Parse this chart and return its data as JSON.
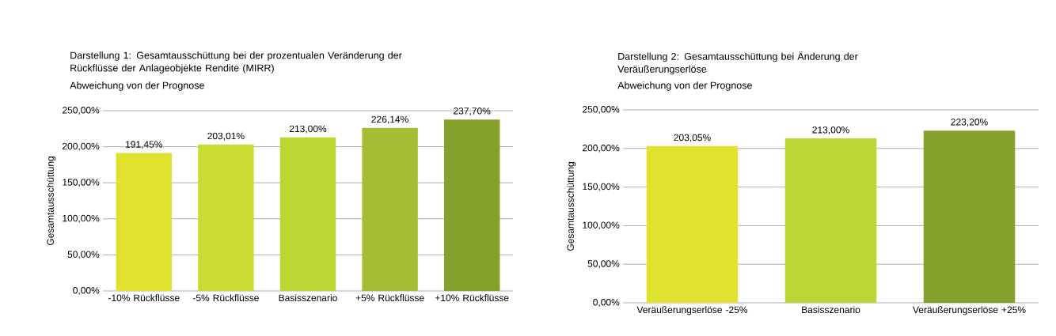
{
  "chart_data": [
    {
      "type": "bar",
      "title": "Darstellung 1: Gesamtausschüttung bei der prozentualen Veränderung der Rückflüsse der Anlageobjekte Rendite (MIRR)",
      "subtitle": "Abweichung von der Prognose",
      "ylabel": "Gesamtausschüttung",
      "categories": [
        "-10% Rückflüsse",
        "-5% Rückflüsse",
        "Basisszenario",
        "+5% Rückflüsse",
        "+10% Rückflüsse"
      ],
      "values": [
        191.45,
        203.01,
        213.0,
        226.14,
        237.7
      ],
      "value_labels": [
        "191,45%",
        "203,01%",
        "213,00%",
        "226,14%",
        "237,70%"
      ],
      "colors": [
        "#e1e22f",
        "#c9dc36",
        "#bcd636",
        "#a3be33",
        "#86a02c"
      ],
      "ylim": [
        0,
        250
      ],
      "yticks": [
        {
          "value": 0,
          "label": "0,00%"
        },
        {
          "value": 50,
          "label": "50,00%"
        },
        {
          "value": 100,
          "label": "100,00%"
        },
        {
          "value": 150,
          "label": "150,00%"
        },
        {
          "value": 200,
          "label": "200,00%"
        },
        {
          "value": 250,
          "label": "250,00%"
        }
      ],
      "grid": "y"
    },
    {
      "type": "bar",
      "title": "Darstellung 2: Gesamtausschüttung bei Änderung der Veräußerungserlöse",
      "subtitle": "Abweichung von der Prognose",
      "ylabel": "Gesamtausschüttung",
      "categories": [
        "Veräußerungserlöse -25%",
        "Basisszenario",
        "Veräußerungserlöse +25%"
      ],
      "values": [
        203.05,
        213.0,
        223.2
      ],
      "value_labels": [
        "203,05%",
        "213,00%",
        "223,20%"
      ],
      "colors": [
        "#e1e22f",
        "#bcd636",
        "#86a02c"
      ],
      "ylim": [
        0,
        250
      ],
      "yticks": [
        {
          "value": 0,
          "label": "0,00%"
        },
        {
          "value": 50,
          "label": "50,00%"
        },
        {
          "value": 100,
          "label": "100,00%"
        },
        {
          "value": 150,
          "label": "150,00%"
        },
        {
          "value": 200,
          "label": "200,00%"
        },
        {
          "value": 250,
          "label": "250,00%"
        }
      ],
      "grid": "y"
    }
  ]
}
